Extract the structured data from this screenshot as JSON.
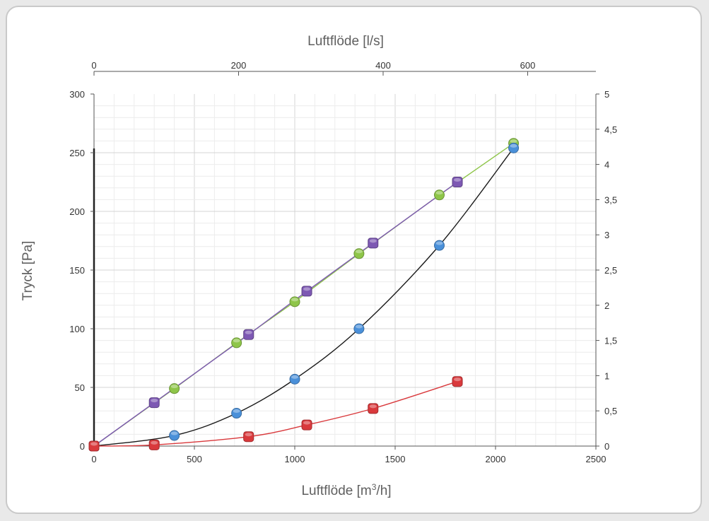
{
  "chart_data": {
    "type": "line",
    "xlabel": "Luftflöde [m³/h]",
    "xlabel_main": "Luftflöde [m",
    "xlabel_sup": "3",
    "xlabel_tail": "/h]",
    "x2label": "Luftflöde [l/s]",
    "ylabel": "Tryck [Pa]",
    "xlim": [
      0,
      2500
    ],
    "x2lim": [
      0,
      694.4
    ],
    "ylim": [
      0,
      300
    ],
    "y2lim": [
      0,
      5
    ],
    "x_ticks": [
      "0",
      "500",
      "1000",
      "1500",
      "2000",
      "2500"
    ],
    "x2_ticks": [
      "0",
      "200",
      "400",
      "600"
    ],
    "y_ticks": [
      "0",
      "50",
      "100",
      "150",
      "200",
      "250",
      "300"
    ],
    "y2_ticks": [
      "0",
      "0,5",
      "1",
      "1,5",
      "2",
      "2,5",
      "3",
      "3,5",
      "4",
      "4,5",
      "5"
    ],
    "grid": true,
    "series": [
      {
        "color": "#8ec549",
        "curve": "straight",
        "points": [
          [
            0,
            0
          ],
          [
            400,
            49
          ],
          [
            710,
            88
          ],
          [
            1000,
            123
          ],
          [
            1320,
            164
          ],
          [
            1720,
            214
          ],
          [
            2090,
            258
          ]
        ]
      },
      {
        "color": "#7d58b3",
        "curve": "straight",
        "points": [
          [
            0,
            0
          ],
          [
            300,
            37
          ],
          [
            770,
            95
          ],
          [
            1060,
            132
          ],
          [
            1390,
            173
          ],
          [
            1810,
            225
          ]
        ]
      },
      {
        "color": "#4a90d9",
        "curve": "smooth",
        "points": [
          [
            0,
            0
          ],
          [
            400,
            9
          ],
          [
            710,
            28
          ],
          [
            1000,
            57
          ],
          [
            1320,
            100
          ],
          [
            1720,
            171
          ],
          [
            2090,
            254
          ]
        ]
      },
      {
        "color": "#d9393c",
        "curve": "smooth",
        "points": [
          [
            0,
            0
          ],
          [
            300,
            1
          ],
          [
            770,
            8
          ],
          [
            1060,
            18
          ],
          [
            1390,
            32
          ],
          [
            1810,
            55
          ]
        ]
      }
    ]
  }
}
